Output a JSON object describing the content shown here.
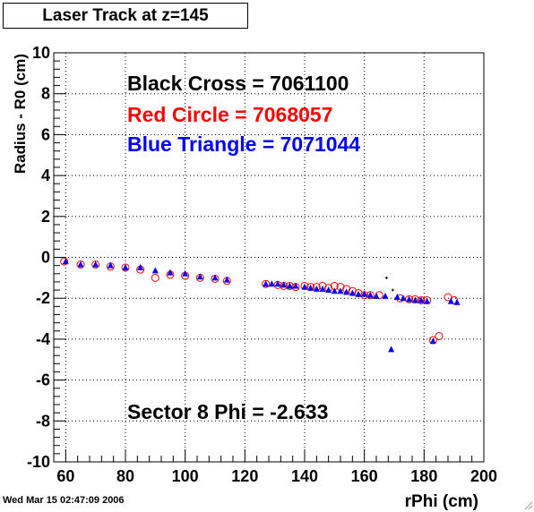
{
  "title": "Laser Track at z=145",
  "timestamp": "Wed Mar 15 02:47:09 2006",
  "icons": {
    "resize": "resize-grip-icon"
  },
  "chart_data": {
    "type": "scatter",
    "xlabel": "rPhi (cm)",
    "ylabel": "Radius - R0 (cm)",
    "xlim": [
      56,
      200
    ],
    "ylim": [
      -10,
      10
    ],
    "xticks": [
      60,
      80,
      100,
      120,
      140,
      160,
      180,
      200
    ],
    "yticks": [
      -10,
      -8,
      -6,
      -4,
      -2,
      0,
      2,
      4,
      6,
      8,
      10
    ],
    "grid": true,
    "annotations": [
      {
        "text": "Black Cross  = 7061100",
        "color": "#000000"
      },
      {
        "text": "Red Circle = 7068057",
        "color": "#ff0000"
      },
      {
        "text": "Blue Triangle = 7071044",
        "color": "#0000ff"
      },
      {
        "text": "Sector 8 Phi = -2.633",
        "color": "#000000"
      }
    ],
    "series": [
      {
        "marker": "cross",
        "color": "#000000",
        "points": [
          [
            167.4,
            -1.0
          ],
          [
            169.5,
            -1.6
          ]
        ]
      },
      {
        "marker": "circle",
        "color": "#ff0000",
        "points": [
          [
            59.5,
            -0.2
          ],
          [
            65,
            -0.35
          ],
          [
            70,
            -0.35
          ],
          [
            75,
            -0.45
          ],
          [
            80,
            -0.5
          ],
          [
            85,
            -0.6
          ],
          [
            90,
            -1.0
          ],
          [
            95,
            -0.85
          ],
          [
            100,
            -0.9
          ],
          [
            105,
            -1.0
          ],
          [
            110,
            -1.05
          ],
          [
            114,
            -1.15
          ],
          [
            127,
            -1.3
          ],
          [
            131,
            -1.35
          ],
          [
            133,
            -1.4
          ],
          [
            135,
            -1.4
          ],
          [
            137,
            -1.45
          ],
          [
            140,
            -1.4
          ],
          [
            142,
            -1.45
          ],
          [
            144,
            -1.45
          ],
          [
            146,
            -1.4
          ],
          [
            148,
            -1.5
          ],
          [
            150,
            -1.4
          ],
          [
            152,
            -1.45
          ],
          [
            154,
            -1.55
          ],
          [
            156,
            -1.65
          ],
          [
            158,
            -1.75
          ],
          [
            160,
            -1.85
          ],
          [
            162,
            -1.85
          ],
          [
            165,
            -1.85
          ],
          [
            172,
            -2.0
          ],
          [
            175,
            -2.05
          ],
          [
            177,
            -2.05
          ],
          [
            179,
            -2.1
          ],
          [
            181,
            -2.1
          ],
          [
            183,
            -4.05
          ],
          [
            185,
            -3.85
          ],
          [
            188,
            -1.95
          ],
          [
            190,
            -2.1
          ]
        ]
      },
      {
        "marker": "triangle",
        "color": "#0000ff",
        "points": [
          [
            60,
            -0.2
          ],
          [
            65,
            -0.35
          ],
          [
            70,
            -0.35
          ],
          [
            75,
            -0.4
          ],
          [
            80,
            -0.5
          ],
          [
            85,
            -0.5
          ],
          [
            90,
            -0.65
          ],
          [
            95,
            -0.75
          ],
          [
            100,
            -0.8
          ],
          [
            105,
            -0.95
          ],
          [
            110,
            -1.0
          ],
          [
            114,
            -1.1
          ],
          [
            127,
            -1.3
          ],
          [
            129,
            -1.3
          ],
          [
            131,
            -1.3
          ],
          [
            133,
            -1.35
          ],
          [
            135,
            -1.4
          ],
          [
            137,
            -1.4
          ],
          [
            140,
            -1.45
          ],
          [
            142,
            -1.5
          ],
          [
            144,
            -1.55
          ],
          [
            146,
            -1.55
          ],
          [
            148,
            -1.6
          ],
          [
            150,
            -1.65
          ],
          [
            152,
            -1.65
          ],
          [
            154,
            -1.7
          ],
          [
            156,
            -1.75
          ],
          [
            158,
            -1.8
          ],
          [
            160,
            -1.8
          ],
          [
            162,
            -1.85
          ],
          [
            164,
            -1.9
          ],
          [
            167,
            -1.9
          ],
          [
            169,
            -4.5
          ],
          [
            171,
            -1.95
          ],
          [
            173,
            -2.0
          ],
          [
            175,
            -2.05
          ],
          [
            177,
            -2.1
          ],
          [
            179,
            -2.1
          ],
          [
            181,
            -2.15
          ],
          [
            183,
            -4.1
          ],
          [
            189,
            -2.15
          ],
          [
            191,
            -2.2
          ]
        ]
      }
    ]
  }
}
